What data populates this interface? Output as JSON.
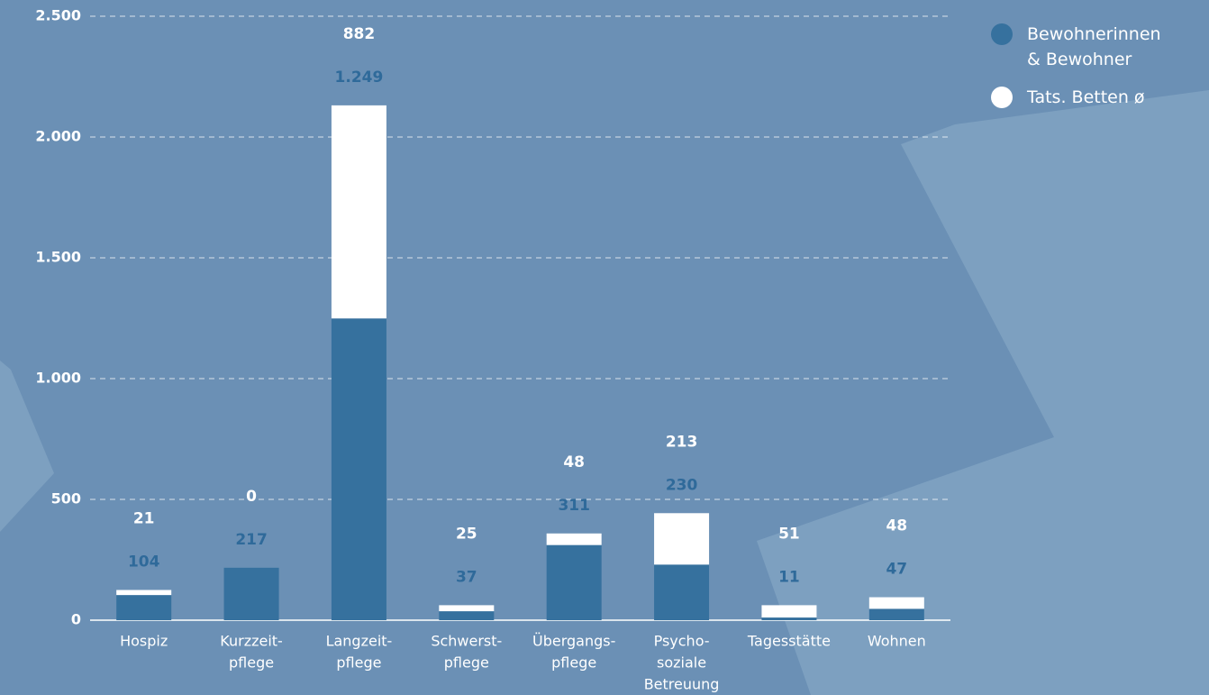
{
  "chart_data": {
    "type": "stacked-bar",
    "categories": [
      [
        "Hospiz"
      ],
      [
        "Kurzzeit-",
        "pflege"
      ],
      [
        "Langzeit-",
        "pflege"
      ],
      [
        "Schwerst-",
        "pflege"
      ],
      [
        "Übergangs-",
        "pflege"
      ],
      [
        "Psycho-",
        "soziale",
        "Betreuung"
      ],
      [
        "Tagesstätte"
      ],
      [
        "Wohnen"
      ]
    ],
    "series": [
      {
        "name": "Bewohnerinnen & Bewohner",
        "color": "#36719e",
        "values": [
          104,
          217,
          1249,
          37,
          311,
          230,
          11,
          47
        ],
        "value_labels": [
          "104",
          "217",
          "1.249",
          "37",
          "311",
          "230",
          "11",
          "47"
        ]
      },
      {
        "name": "Tats. Betten ø",
        "color": "#ffffff",
        "values": [
          21,
          0,
          882,
          25,
          48,
          213,
          51,
          48
        ]
      }
    ],
    "ylim": [
      0,
      2500
    ],
    "yticks": [
      0,
      500,
      {
        "value": 1000,
        "label": "1.000"
      },
      {
        "value": 1500,
        "label": "1.500"
      },
      {
        "value": 2000,
        "label": "2.000"
      },
      {
        "value": 2500,
        "label": "2.500"
      }
    ],
    "grid": true,
    "legend": "top-right"
  }
}
